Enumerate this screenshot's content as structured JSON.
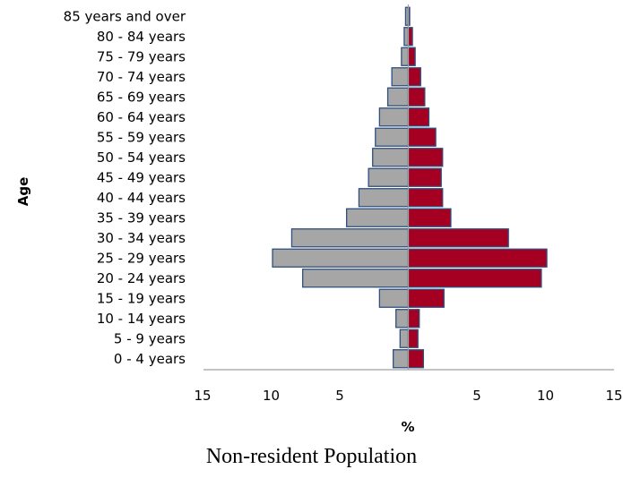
{
  "chart_data": {
    "type": "bar",
    "orientation": "horizontal-population-pyramid",
    "categories": [
      "0 - 4 years",
      "5 - 9 years",
      "10 - 14 years",
      "15 - 19 years",
      "20 - 24 years",
      "25 - 29 years",
      "30 - 34 years",
      "35 - 39 years",
      "40 - 44 years",
      "45 - 49 years",
      "50 - 54 years",
      "55 - 59 years",
      "60 - 64 years",
      "65 - 69 years",
      "70 - 74 years",
      "75 - 79 years",
      "80 - 84 years",
      "85 years and over"
    ],
    "series": [
      {
        "side": "left",
        "color": "#a6a6a6",
        "edge_color": "#2f4f7f",
        "values": [
          1.1,
          0.6,
          0.9,
          2.1,
          7.7,
          9.9,
          8.5,
          4.5,
          3.6,
          2.9,
          2.6,
          2.4,
          2.1,
          1.5,
          1.2,
          0.5,
          0.3,
          0.2
        ]
      },
      {
        "side": "right",
        "color": "#a50021",
        "edge_color": "#2f4f7f",
        "values": [
          1.1,
          0.7,
          0.8,
          2.6,
          9.7,
          10.1,
          7.3,
          3.1,
          2.5,
          2.4,
          2.5,
          2.0,
          1.5,
          1.2,
          0.9,
          0.5,
          0.3,
          0.1
        ]
      }
    ],
    "xlabel": "%",
    "ylabel": "Age",
    "xlim": [
      -15,
      15
    ],
    "xticks": [
      -15,
      -10,
      -5,
      5,
      10,
      15
    ],
    "xtick_labels": [
      "15",
      "10",
      "5",
      "5",
      "10",
      "15"
    ],
    "grid": false,
    "legend": "none"
  },
  "caption": "Non-resident Population"
}
